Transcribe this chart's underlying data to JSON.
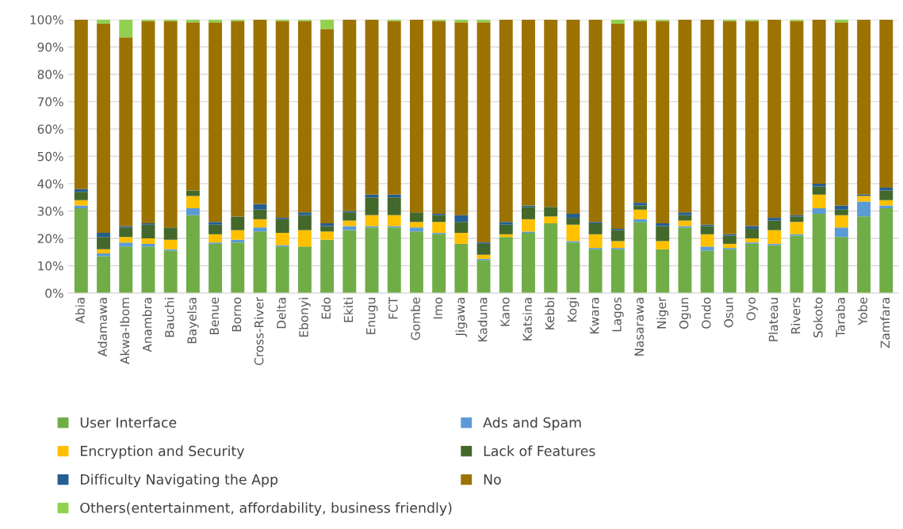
{
  "chart_data": {
    "type": "bar",
    "stacked": true,
    "categories": [
      "Abia",
      "Adamawa",
      "Akwa-Ibom",
      "Anambra",
      "Bauchi",
      "Bayelsa",
      "Benue",
      "Borno",
      "Cross-River",
      "Delta",
      "Ebonyi",
      "Edo",
      "Ekiti",
      "Enugu",
      "FCT",
      "Gombe",
      "Imo",
      "Jigawa",
      "Kaduna",
      "Kano",
      "Katsina",
      "Kebbi",
      "Kogi",
      "Kwara",
      "Lagos",
      "Nasarawa",
      "Niger",
      "Ogun",
      "Ondo",
      "Osun",
      "Oyo",
      "Plateau",
      "Rivers",
      "Sokoto",
      "Taraba",
      "Yobe",
      "Zamfara"
    ],
    "series": [
      {
        "name": "User Interface",
        "color": "#70ad47",
        "values": [
          31,
          13.5,
          17,
          17,
          15.5,
          28.5,
          18,
          18.5,
          22.5,
          17,
          17,
          19.5,
          23,
          24,
          24,
          22.5,
          21.5,
          18,
          12,
          20.5,
          22,
          25.5,
          18.5,
          16,
          16,
          26,
          16,
          24,
          15.5,
          16,
          18,
          17.5,
          21,
          29,
          20.5,
          28,
          31
        ]
      },
      {
        "name": "Ads and Spam",
        "color": "#5b9bd5",
        "values": [
          1,
          1,
          1.5,
          1,
          0.5,
          2.5,
          0.5,
          1,
          1.5,
          0.5,
          0,
          0,
          1.5,
          0.5,
          0.5,
          1.5,
          0.5,
          0,
          0.5,
          0,
          0.5,
          0,
          0.5,
          0.5,
          0.5,
          1,
          0,
          0.5,
          1.5,
          0.5,
          0.5,
          0.5,
          0.5,
          2,
          3.5,
          5.5,
          1
        ]
      },
      {
        "name": "Encryption and Security",
        "color": "#ffc000",
        "values": [
          2,
          1.5,
          2,
          2,
          3.5,
          4.5,
          3,
          3.5,
          3,
          4.5,
          6,
          3,
          2,
          4,
          4,
          2,
          4,
          4,
          1.5,
          1,
          4.5,
          2.5,
          6,
          5,
          2.5,
          3.5,
          3,
          2,
          4.5,
          1.5,
          1.5,
          5,
          4.5,
          5,
          4.5,
          2,
          2
        ]
      },
      {
        "name": "Lack of Features",
        "color": "#43682b",
        "values": [
          3,
          4.5,
          3.5,
          5,
          4.5,
          2,
          3.5,
          5,
          3.5,
          5,
          5.5,
          2,
          3,
          6.5,
          6.5,
          3.5,
          2.5,
          4,
          4,
          3.5,
          4.5,
          3.5,
          2.5,
          4,
          4,
          1.5,
          5.5,
          2,
          3,
          3,
          3.5,
          3.5,
          2,
          3,
          2,
          0,
          3.5
        ]
      },
      {
        "name": "Difficulty Navigating the App",
        "color": "#255e91",
        "values": [
          1,
          1.5,
          0.5,
          0.5,
          0,
          0,
          1,
          0,
          2,
          0.5,
          1,
          1,
          0.5,
          1,
          1,
          0,
          0.5,
          2.5,
          0.5,
          1,
          0.5,
          0,
          1.5,
          0.5,
          0.5,
          1,
          1,
          1,
          0.5,
          0.5,
          1,
          1,
          0.5,
          1,
          1.5,
          0.5,
          1
        ]
      },
      {
        "name": "No",
        "color": "#9c7200",
        "values": [
          62,
          76.5,
          69,
          74,
          75.5,
          61.5,
          73,
          71.5,
          67.5,
          72,
          70,
          71,
          70,
          64,
          63.5,
          70.5,
          70.5,
          70.5,
          80.5,
          74,
          68,
          68.5,
          71,
          74,
          75,
          66.5,
          74,
          70.5,
          75,
          78,
          75,
          72.5,
          71,
          60,
          67,
          64,
          61.5
        ]
      },
      {
        "name": "Others(entertainment, affordability, business friendly)",
        "color": "#92d050",
        "values": [
          0,
          1.5,
          6.5,
          0.5,
          0.5,
          1,
          1,
          0.5,
          0,
          0.5,
          0.5,
          3.5,
          0,
          0,
          0.5,
          0,
          0.5,
          1,
          1,
          0,
          0,
          0,
          0,
          0,
          1.5,
          0.5,
          0.5,
          0,
          0,
          0.5,
          0.5,
          0,
          0.5,
          0,
          1,
          0,
          0
        ]
      }
    ],
    "ylim": [
      0,
      100
    ],
    "yticks": [
      {
        "value": 0,
        "label": "0%"
      },
      {
        "value": 10,
        "label": "10%"
      },
      {
        "value": 20,
        "label": "20%"
      },
      {
        "value": 30,
        "label": "30%"
      },
      {
        "value": 40,
        "label": "40%"
      },
      {
        "value": 50,
        "label": "50%"
      },
      {
        "value": 60,
        "label": "60%"
      },
      {
        "value": 70,
        "label": "70%"
      },
      {
        "value": 80,
        "label": "80%"
      },
      {
        "value": 90,
        "label": "90%"
      },
      {
        "value": 100,
        "label": "100%"
      }
    ],
    "grid": "y",
    "legend": "bottom"
  }
}
